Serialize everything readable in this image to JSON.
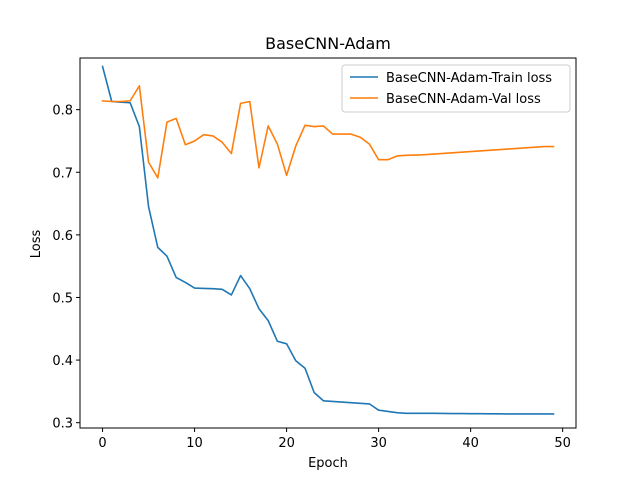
{
  "chart_data": {
    "type": "line",
    "title": "BaseCNN-Adam",
    "xlabel": "Epoch",
    "ylabel": "Loss",
    "xlim": [
      -2.45,
      51.45
    ],
    "ylim": [
      0.2915,
      0.8825
    ],
    "xticks": [
      0,
      10,
      20,
      30,
      40,
      50
    ],
    "yticks": [
      0.3,
      0.4,
      0.5,
      0.6,
      0.7,
      0.8
    ],
    "xtick_labels": [
      "0",
      "10",
      "20",
      "30",
      "40",
      "50"
    ],
    "ytick_labels": [
      "0.3",
      "0.4",
      "0.5",
      "0.6",
      "0.7",
      "0.8"
    ],
    "legend_position": "top-right",
    "grid": false,
    "series": [
      {
        "name": "BaseCNN-Adam-Train loss",
        "color": "#1f77b4",
        "x": [
          0,
          1,
          2,
          3,
          4,
          5,
          6,
          7,
          8,
          9,
          10,
          11,
          12,
          13,
          14,
          15,
          16,
          17,
          18,
          19,
          20,
          21,
          22,
          23,
          24,
          25,
          26,
          27,
          28,
          29,
          30,
          31,
          32,
          33,
          34,
          35,
          36,
          37,
          38,
          39,
          40,
          41,
          42,
          43,
          44,
          45,
          46,
          47,
          48,
          49
        ],
        "values": [
          0.869,
          0.813,
          0.812,
          0.811,
          0.773,
          0.645,
          0.58,
          0.566,
          0.532,
          0.524,
          0.515,
          0.5145,
          0.514,
          0.513,
          0.504,
          0.535,
          0.514,
          0.482,
          0.463,
          0.43,
          0.426,
          0.399,
          0.387,
          0.348,
          0.335,
          0.334,
          0.333,
          0.332,
          0.331,
          0.33,
          0.32,
          0.318,
          0.316,
          0.315,
          0.315,
          0.315,
          0.315,
          0.3148,
          0.3146,
          0.3145,
          0.3144,
          0.3143,
          0.3142,
          0.3141,
          0.314,
          0.314,
          0.314,
          0.314,
          0.314,
          0.314
        ]
      },
      {
        "name": "BaseCNN-Adam-Val loss",
        "color": "#ff7f0e",
        "x": [
          0,
          1,
          2,
          3,
          4,
          5,
          6,
          7,
          8,
          9,
          10,
          11,
          12,
          13,
          14,
          15,
          16,
          17,
          18,
          19,
          20,
          21,
          22,
          23,
          24,
          25,
          26,
          27,
          28,
          29,
          30,
          31,
          32,
          33,
          34,
          35,
          36,
          37,
          38,
          39,
          40,
          41,
          42,
          43,
          44,
          45,
          46,
          47,
          48,
          49
        ],
        "values": [
          0.814,
          0.813,
          0.813,
          0.814,
          0.838,
          0.716,
          0.691,
          0.78,
          0.786,
          0.744,
          0.75,
          0.76,
          0.758,
          0.748,
          0.73,
          0.81,
          0.813,
          0.707,
          0.774,
          0.745,
          0.695,
          0.742,
          0.775,
          0.773,
          0.774,
          0.761,
          0.761,
          0.761,
          0.756,
          0.745,
          0.72,
          0.72,
          0.726,
          0.727,
          0.7275,
          0.728,
          0.729,
          0.73,
          0.731,
          0.732,
          0.733,
          0.734,
          0.735,
          0.736,
          0.737,
          0.738,
          0.739,
          0.74,
          0.741,
          0.741
        ]
      }
    ]
  }
}
